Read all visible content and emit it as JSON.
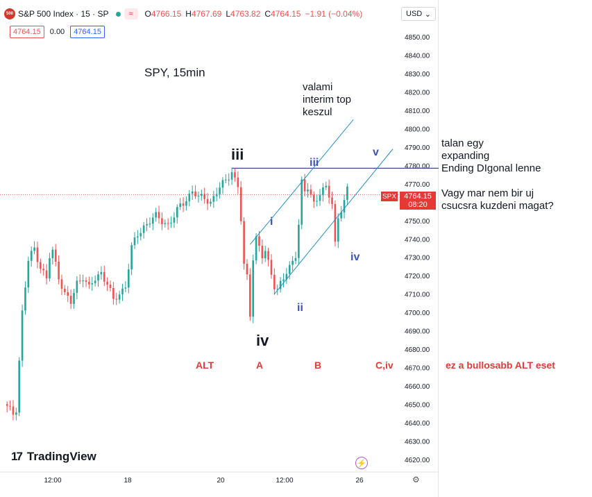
{
  "header": {
    "logo_text": "500",
    "symbol": "S&P 500 Index · 15 · SP",
    "wave_icon": "wave-icon",
    "ohlc": {
      "o_label": "O",
      "o_value": "4766.15",
      "h_label": "H",
      "h_value": "4767.69",
      "l_label": "L",
      "l_value": "4763.82",
      "c_label": "C",
      "c_value": "4764.15",
      "change": "−1.91 (−0.04%)"
    },
    "sell_price": "4764.15",
    "spread": "0.00",
    "buy_price": "4764.15"
  },
  "currency": {
    "label": "USD",
    "icon": "chevron-down-icon"
  },
  "brand": {
    "mark": "17",
    "name": "TradingView"
  },
  "colors": {
    "up": "#26a69a",
    "down": "#ef5350",
    "channel": "#1e90c8",
    "hline": "#3f4a8a",
    "label_red": "#e53935",
    "label_blue": "#3f51b5"
  },
  "annotations": {
    "title": "SPY, 15min",
    "top_note": [
      "valami",
      "interim top",
      "keszul"
    ],
    "right_note1": [
      "talan egy",
      "expanding",
      "Ending DIgonal lenne"
    ],
    "right_note2": [
      "Vagy mar nem bir uj",
      "csucsra kuzdeni magat?"
    ],
    "iii_main": "iii",
    "iv_main": "iv",
    "small_i": "i",
    "small_ii": "ii",
    "small_iii": "iii",
    "small_iv": "iv",
    "small_v": "v",
    "alt": "ALT",
    "a": "A",
    "b": "B",
    "civ": "C,iv",
    "alt_note": "ez a bullosabb ALT eset"
  },
  "price_tag": {
    "symbol": "SPX",
    "price": "4764.15",
    "countdown": "08:20"
  },
  "chart_data": {
    "type": "candlestick",
    "title": "S&P 500 Index · 15 · SP",
    "ylim": [
      4615,
      4855
    ],
    "y_ticks": [
      4620,
      4630,
      4640,
      4650,
      4660,
      4670,
      4680,
      4690,
      4700,
      4710,
      4720,
      4730,
      4740,
      4750,
      4760,
      4770,
      4780,
      4790,
      4800,
      4810,
      4820,
      4830,
      4840,
      4850
    ],
    "x_tick_labels": [
      "12:00",
      "18",
      "20",
      "12:00",
      "26"
    ],
    "last_price": 4764.15,
    "horizontal_level": 4778.5,
    "close_path": [
      [
        0,
        4648
      ],
      [
        2,
        4645
      ],
      [
        3,
        4648
      ],
      [
        5,
        4700
      ],
      [
        7,
        4728
      ],
      [
        9,
        4735
      ],
      [
        11,
        4725
      ],
      [
        13,
        4718
      ],
      [
        14,
        4730
      ],
      [
        15,
        4733
      ],
      [
        17,
        4720
      ],
      [
        19,
        4710
      ],
      [
        21,
        4705
      ],
      [
        23,
        4716
      ],
      [
        25,
        4720
      ],
      [
        27,
        4713
      ],
      [
        29,
        4718
      ],
      [
        31,
        4722
      ],
      [
        33,
        4716
      ],
      [
        35,
        4706
      ],
      [
        37,
        4710
      ],
      [
        39,
        4715
      ],
      [
        41,
        4735
      ],
      [
        43,
        4742
      ],
      [
        45,
        4747
      ],
      [
        47,
        4750
      ],
      [
        49,
        4752
      ],
      [
        51,
        4750
      ],
      [
        53,
        4748
      ],
      [
        55,
        4752
      ],
      [
        57,
        4758
      ],
      [
        59,
        4762
      ],
      [
        61,
        4766
      ],
      [
        63,
        4762
      ],
      [
        65,
        4763
      ],
      [
        67,
        4760
      ],
      [
        69,
        4765
      ],
      [
        71,
        4770
      ],
      [
        73,
        4775
      ],
      [
        74,
        4777
      ],
      [
        75,
        4772
      ],
      [
        76,
        4768
      ],
      [
        77,
        4750
      ],
      [
        78,
        4725
      ],
      [
        79,
        4720
      ],
      [
        80,
        4700
      ],
      [
        81,
        4730
      ],
      [
        82,
        4740
      ],
      [
        83,
        4735
      ],
      [
        84,
        4730
      ],
      [
        85,
        4733
      ],
      [
        87,
        4722
      ],
      [
        88,
        4715
      ],
      [
        89,
        4712
      ],
      [
        91,
        4718
      ],
      [
        93,
        4725
      ],
      [
        95,
        4732
      ],
      [
        96,
        4748
      ],
      [
        97,
        4770
      ],
      [
        98,
        4765
      ],
      [
        99,
        4768
      ],
      [
        101,
        4760
      ],
      [
        103,
        4765
      ],
      [
        105,
        4767
      ],
      [
        107,
        4760
      ],
      [
        108,
        4738
      ],
      [
        109,
        4752
      ],
      [
        110,
        4756
      ],
      [
        111,
        4760
      ],
      [
        112,
        4766
      ]
    ],
    "channel_lines": [
      {
        "x1": 80,
        "y1": 4737,
        "x2": 114,
        "y2": 4805
      },
      {
        "x1": 88,
        "y1": 4710,
        "x2": 127,
        "y2": 4789
      }
    ]
  }
}
